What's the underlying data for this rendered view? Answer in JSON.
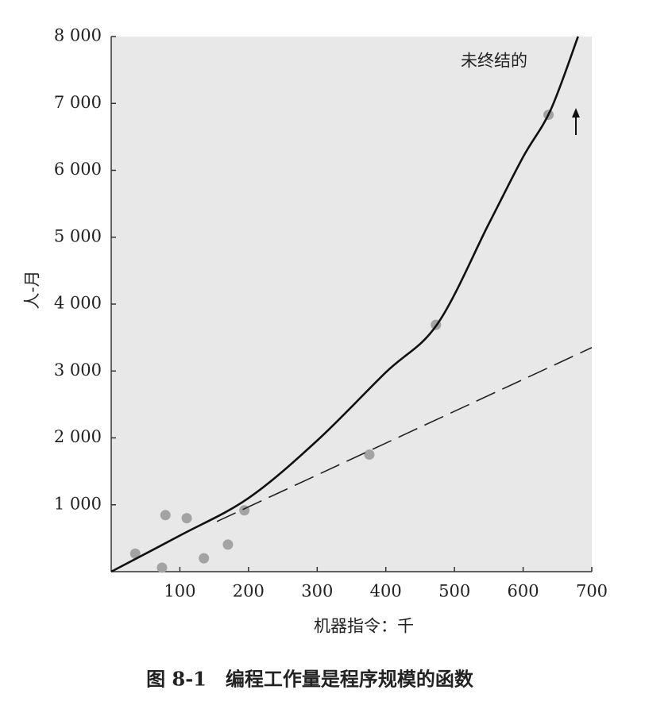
{
  "chart_data": {
    "type": "scatter",
    "caption": "图 8-1　编程工作量是程序规模的函数",
    "xlabel": "机器指令：千",
    "ylabel": "人-月",
    "annotation": "未终结的",
    "xlim": [
      0,
      700
    ],
    "ylim": [
      0,
      8000
    ],
    "xticks": [
      100,
      200,
      300,
      400,
      500,
      600,
      700
    ],
    "yticks": [
      {
        "value": 1000,
        "label": "1 000"
      },
      {
        "value": 2000,
        "label": "2 000"
      },
      {
        "value": 3000,
        "label": "3 000"
      },
      {
        "value": 4000,
        "label": "4 000"
      },
      {
        "value": 5000,
        "label": "5 000"
      },
      {
        "value": 6000,
        "label": "6 000"
      },
      {
        "value": 7000,
        "label": "7 000"
      },
      {
        "value": 8000,
        "label": "8 000"
      }
    ],
    "series": [
      {
        "mode": "markers",
        "color": "#a3a3a3",
        "x": [
          35,
          74,
          79,
          110,
          135,
          170,
          194,
          376,
          473,
          637
        ],
        "values": [
          270,
          60,
          845,
          800,
          200,
          405,
          917,
          1750,
          3690,
          6830
        ]
      },
      {
        "mode": "line",
        "color": "#111111",
        "x": [
          0,
          100,
          200,
          300,
          400,
          475,
          550,
          600,
          640,
          680
        ],
        "values": [
          0,
          540,
          1100,
          1960,
          2980,
          3700,
          5200,
          6200,
          6900,
          8000
        ]
      },
      {
        "mode": "line",
        "dashed": true,
        "color": "#222222",
        "x": [
          154,
          700
        ],
        "values": [
          750,
          3350
        ]
      }
    ]
  }
}
